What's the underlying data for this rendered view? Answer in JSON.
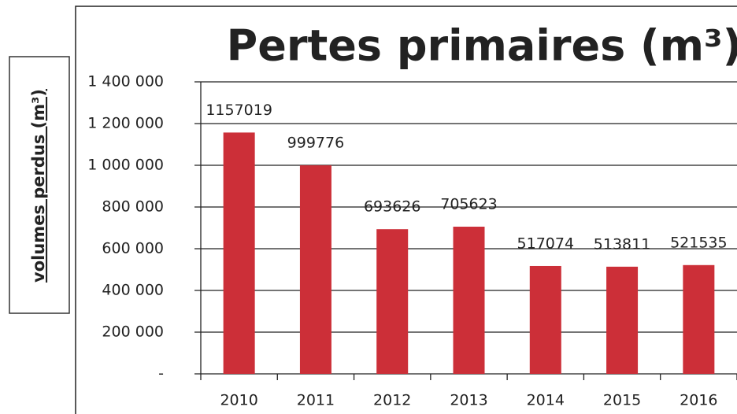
{
  "chart_data": {
    "type": "bar",
    "title": "Pertes primaires (m³)",
    "y_label": "volumes perdus (m³)",
    "categories": [
      "2010",
      "2011",
      "2012",
      "2013",
      "2014",
      "2015",
      "2016"
    ],
    "values": [
      1157019,
      999776,
      693626,
      705623,
      517074,
      513811,
      521535
    ],
    "color": "#cc2f38",
    "ylim": [
      0,
      1400000
    ],
    "yticks": [
      {
        "value": 0,
        "label": "-"
      },
      {
        "value": 200000,
        "label": "200 000"
      },
      {
        "value": 400000,
        "label": "400 000"
      },
      {
        "value": 600000,
        "label": "600 000"
      },
      {
        "value": 800000,
        "label": "800 000"
      },
      {
        "value": 1000000,
        "label": "1 000 000"
      },
      {
        "value": 1200000,
        "label": "1 200 000"
      },
      {
        "value": 1400000,
        "label": "1 400 000"
      }
    ],
    "grid": true
  }
}
